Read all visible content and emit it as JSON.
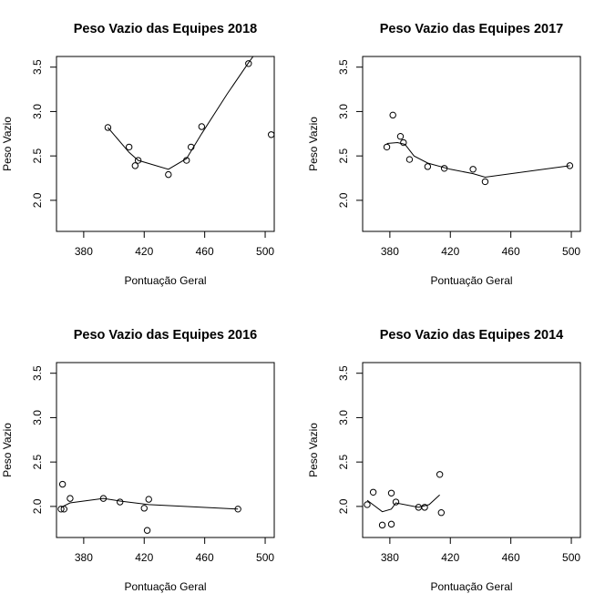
{
  "chart_data": [
    {
      "type": "scatter",
      "title": "Peso Vazio das Equipes 2018",
      "xlabel": "Pontuação Geral",
      "ylabel": "Peso Vazio",
      "xlim": [
        362,
        506
      ],
      "ylim": [
        1.65,
        3.62
      ],
      "xticks": [
        "380",
        "420",
        "460",
        "500"
      ],
      "yticks": [
        "2.0",
        "2.5",
        "3.0",
        "3.5"
      ],
      "points": [
        [
          396,
          2.82
        ],
        [
          410,
          2.6
        ],
        [
          414,
          2.39
        ],
        [
          416,
          2.45
        ],
        [
          436,
          2.29
        ],
        [
          448,
          2.45
        ],
        [
          451,
          2.6
        ],
        [
          458,
          2.83
        ],
        [
          489,
          3.54
        ],
        [
          504,
          2.74
        ]
      ],
      "smooth": [
        [
          396,
          2.82
        ],
        [
          410,
          2.54
        ],
        [
          416,
          2.45
        ],
        [
          436,
          2.35
        ],
        [
          448,
          2.47
        ],
        [
          458,
          2.75
        ],
        [
          475,
          3.2
        ],
        [
          489,
          3.55
        ],
        [
          492,
          3.62
        ]
      ]
    },
    {
      "type": "scatter",
      "title": "Peso Vazio das Equipes 2017",
      "xlabel": "Pontuação Geral",
      "ylabel": "Peso Vazio",
      "xlim": [
        362,
        506
      ],
      "ylim": [
        1.65,
        3.62
      ],
      "xticks": [
        "380",
        "420",
        "460",
        "500"
      ],
      "yticks": [
        "2.0",
        "2.5",
        "3.0",
        "3.5"
      ],
      "points": [
        [
          378,
          2.6
        ],
        [
          382,
          2.96
        ],
        [
          387,
          2.72
        ],
        [
          389,
          2.65
        ],
        [
          393,
          2.46
        ],
        [
          405,
          2.38
        ],
        [
          416,
          2.36
        ],
        [
          435,
          2.35
        ],
        [
          443,
          2.21
        ],
        [
          499,
          2.39
        ]
      ],
      "smooth": [
        [
          378,
          2.64
        ],
        [
          385,
          2.65
        ],
        [
          390,
          2.63
        ],
        [
          396,
          2.5
        ],
        [
          405,
          2.42
        ],
        [
          420,
          2.35
        ],
        [
          435,
          2.3
        ],
        [
          443,
          2.26
        ],
        [
          499,
          2.39
        ]
      ]
    },
    {
      "type": "scatter",
      "title": "Peso Vazio das Equipes 2016",
      "xlabel": "Pontuação Geral",
      "ylabel": "Peso Vazio",
      "xlim": [
        362,
        506
      ],
      "ylim": [
        1.65,
        3.62
      ],
      "xticks": [
        "380",
        "420",
        "460",
        "500"
      ],
      "yticks": [
        "2.0",
        "2.5",
        "3.0",
        "3.5"
      ],
      "points": [
        [
          365,
          1.97
        ],
        [
          366,
          2.25
        ],
        [
          367,
          1.97
        ],
        [
          371,
          2.09
        ],
        [
          393,
          2.09
        ],
        [
          404,
          2.05
        ],
        [
          420,
          1.98
        ],
        [
          422,
          1.73
        ],
        [
          423,
          2.08
        ],
        [
          482,
          1.97
        ]
      ],
      "smooth": [
        [
          365,
          1.99
        ],
        [
          371,
          2.04
        ],
        [
          393,
          2.09
        ],
        [
          404,
          2.06
        ],
        [
          423,
          2.02
        ],
        [
          482,
          1.97
        ]
      ]
    },
    {
      "type": "scatter",
      "title": "Peso Vazio das Equipes 2014",
      "xlabel": "Pontuação Geral",
      "ylabel": "Peso Vazio",
      "xlim": [
        362,
        506
      ],
      "ylim": [
        1.65,
        3.62
      ],
      "xticks": [
        "380",
        "420",
        "460",
        "500"
      ],
      "yticks": [
        "2.0",
        "2.5",
        "3.0",
        "3.5"
      ],
      "points": [
        [
          365,
          2.02
        ],
        [
          369,
          2.16
        ],
        [
          375,
          1.79
        ],
        [
          381,
          1.8
        ],
        [
          381,
          2.15
        ],
        [
          384,
          2.05
        ],
        [
          399,
          1.99
        ],
        [
          403,
          1.99
        ],
        [
          413,
          2.36
        ],
        [
          414,
          1.93
        ]
      ],
      "smooth": [
        [
          365,
          2.07
        ],
        [
          375,
          1.94
        ],
        [
          381,
          1.97
        ],
        [
          384,
          2.04
        ],
        [
          399,
          1.99
        ],
        [
          406,
          2.02
        ],
        [
          413,
          2.13
        ]
      ]
    }
  ]
}
